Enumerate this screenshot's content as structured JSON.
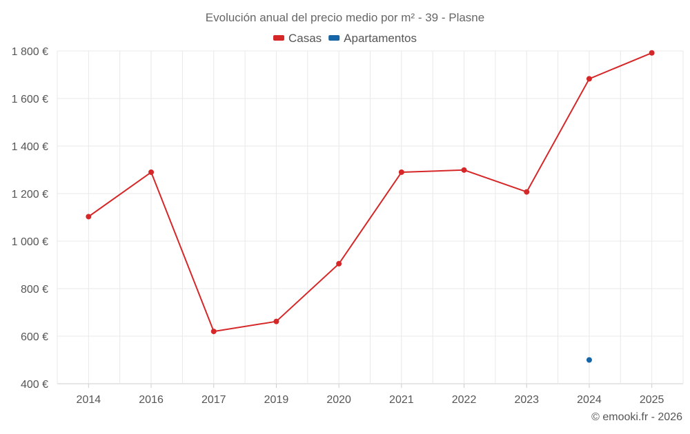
{
  "chart_data": {
    "type": "line",
    "title": "Evolución anual del precio medio por m² - 39 - Plasne",
    "categories": [
      "2014",
      "2016",
      "2017",
      "2019",
      "2020",
      "2021",
      "2022",
      "2023",
      "2024",
      "2025"
    ],
    "series": [
      {
        "name": "Casas",
        "color": "#d62728",
        "values": [
          1103,
          1290,
          620,
          662,
          905,
          1290,
          1299,
          1207,
          1683,
          1792
        ]
      },
      {
        "name": "Apartamentos",
        "color": "#1565a7",
        "values": [
          null,
          null,
          null,
          null,
          null,
          null,
          null,
          null,
          500,
          null
        ]
      }
    ],
    "ylim": [
      400,
      1800
    ],
    "yticks": [
      400,
      600,
      800,
      1000,
      1200,
      1400,
      1600,
      1800
    ],
    "ytick_labels": [
      "400 €",
      "600 €",
      "800 €",
      "1 000 €",
      "1 200 €",
      "1 400 €",
      "1 600 €",
      "1 800 €"
    ],
    "xlabel": "",
    "ylabel": "",
    "grid": true,
    "legend_position": "top-center"
  },
  "credit": "© emooki.fr - 2026"
}
